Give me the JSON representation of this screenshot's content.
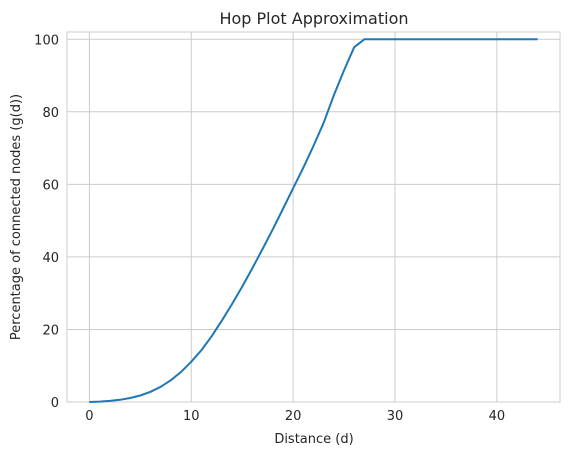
{
  "chart_data": {
    "type": "line",
    "title": "Hop Plot Approximation",
    "xlabel": "Distance (d)",
    "ylabel": "Percentage of connected nodes (g(d))",
    "xlim": [
      -2.2,
      46.2
    ],
    "ylim": [
      0,
      102
    ],
    "x_ticks": [
      0,
      10,
      20,
      30,
      40
    ],
    "y_ticks": [
      0,
      20,
      40,
      60,
      80,
      100
    ],
    "grid": true,
    "line_color": "#1f77b4",
    "grid_color": "#cccccc",
    "x": [
      0,
      1,
      2,
      3,
      4,
      5,
      6,
      7,
      8,
      9,
      10,
      11,
      12,
      13,
      14,
      15,
      16,
      17,
      18,
      19,
      20,
      21,
      22,
      23,
      24,
      25,
      26,
      27,
      28,
      29,
      30,
      31,
      32,
      33,
      34,
      35,
      36,
      37,
      38,
      39,
      40,
      41,
      42,
      43,
      44
    ],
    "y": [
      0,
      0.1,
      0.3,
      0.6,
      1.1,
      1.8,
      2.8,
      4.2,
      6.0,
      8.3,
      11.1,
      14.3,
      18.1,
      22.4,
      27.0,
      31.8,
      36.9,
      42.2,
      47.6,
      53.2,
      58.9,
      64.6,
      70.6,
      77.0,
      84.6,
      91.5,
      97.8,
      100,
      100,
      100,
      100,
      100,
      100,
      100,
      100,
      100,
      100,
      100,
      100,
      100,
      100,
      100,
      100,
      100,
      100
    ]
  }
}
